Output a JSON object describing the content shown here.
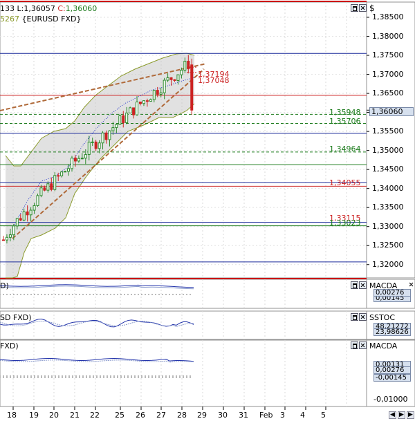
{
  "price_panel": {
    "header_ohlc_prefix": "133 L:",
    "header_low": "1,36057",
    "header_close_prefix": "C:",
    "header_close": "1,36060",
    "header_line2_prefix": "5267",
    "header_line2_instrument": "{EURUSD FXD}",
    "axis_symbol": "$",
    "y_ticks": [
      "1,38500",
      "1,38000",
      "1,37500",
      "1,37000",
      "1,36500",
      "1,36000",
      "1,35500",
      "1,35000",
      "1,34500",
      "1,34000",
      "1,33500",
      "1,33000",
      "1,32500",
      "1,32000"
    ],
    "current_price": "1,36060",
    "level_labels": [
      {
        "text": "1,37194",
        "color": "#cc2222"
      },
      {
        "text": "1,37048",
        "color": "#cc2222"
      },
      {
        "text": "1,35948",
        "color": "#1a7a1a"
      },
      {
        "text": "1,35706",
        "color": "#1a7a1a"
      },
      {
        "text": "1,34964",
        "color": "#1a7a1a"
      },
      {
        "text": "1,34055",
        "color": "#cc2222"
      },
      {
        "text": "1,33115",
        "color": "#cc2222"
      },
      {
        "text": "1,33023",
        "color": "#1a7a1a"
      }
    ]
  },
  "panel2": {
    "title": "D)",
    "indicator": "MACDA",
    "value_top": "0,00276",
    "value_bottom": "0,00145"
  },
  "panel3": {
    "title": "SD FXD)",
    "indicator": "SSTOC",
    "value_top": "48,21272",
    "value_bottom": "23,98626"
  },
  "panel4": {
    "title": "FXD)",
    "indicator": "MACDA",
    "value_top": "0,00131",
    "value_mid": "0,00276",
    "value_bottom": "-0,00145",
    "value_axis": "-0,01000"
  },
  "time_axis": {
    "labels": [
      "19",
      "20",
      "21",
      "22",
      "25",
      "26",
      "27",
      "28",
      "29",
      "30",
      "31",
      "Feb",
      "3",
      "4",
      "5"
    ],
    "first_label": "18"
  },
  "colors": {
    "bull_candle": "#2a8a2a",
    "bear_candle": "#cc2222",
    "band": "#c8c8c8",
    "band_line": "#8a9a2a",
    "trendline": "#b06a3a",
    "ma": "#2233cc"
  },
  "icons": {
    "maximize": "maximize-icon",
    "close": "close-icon",
    "scroll_left": "scroll-left-icon",
    "scroll_right": "scroll-right-icon"
  },
  "chart_data": {
    "type": "candlestick",
    "symbol": "EURUSD FXD",
    "x": [
      "18",
      "19",
      "20",
      "21",
      "22",
      "25",
      "26",
      "27",
      "28"
    ],
    "ylim": [
      1.3165,
      1.389
    ],
    "candles": [
      {
        "o": 1.327,
        "h": 1.331,
        "l": 1.325,
        "c": 1.329
      },
      {
        "o": 1.329,
        "h": 1.347,
        "l": 1.3275,
        "c": 1.344
      },
      {
        "o": 1.344,
        "h": 1.35,
        "l": 1.339,
        "c": 1.342
      },
      {
        "o": 1.342,
        "h": 1.352,
        "l": 1.34,
        "c": 1.349
      },
      {
        "o": 1.349,
        "h": 1.361,
        "l": 1.347,
        "c": 1.359
      },
      {
        "o": 1.359,
        "h": 1.366,
        "l": 1.356,
        "c": 1.362
      },
      {
        "o": 1.362,
        "h": 1.37,
        "l": 1.36,
        "c": 1.368
      },
      {
        "o": 1.368,
        "h": 1.3755,
        "l": 1.366,
        "c": 1.373
      },
      {
        "o": 1.373,
        "h": 1.3745,
        "l": 1.3596,
        "c": 1.3606
      }
    ],
    "levels": [
      1.3755,
      1.3719,
      1.3705,
      1.3645,
      1.3595,
      1.3571,
      1.3545,
      1.3496,
      1.3462,
      1.3415,
      1.3406,
      1.3311,
      1.3302,
      1.3207,
      1.3168
    ]
  }
}
